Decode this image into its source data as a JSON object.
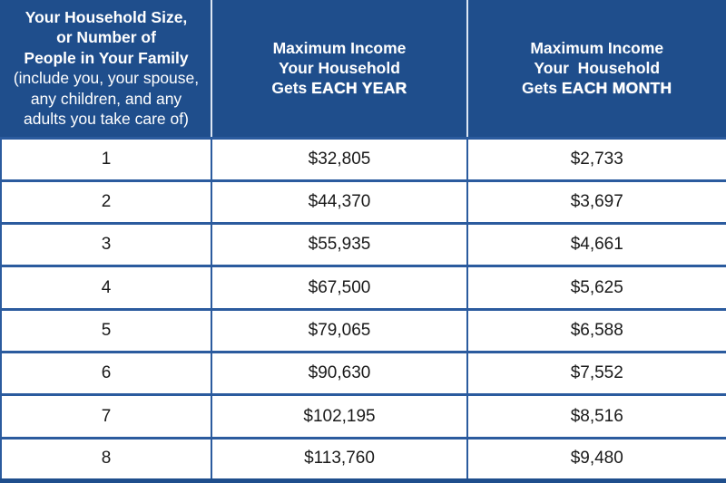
{
  "colors": {
    "header_bg": "#1F4E8C",
    "border_blue": "#2B5B9E",
    "outer_blue": "#1F4E8C",
    "header_sep": "#DDE7F4",
    "body_text": "#1A1A1A",
    "header_text": "#FFFFFF",
    "page_bg": "#FFFFFF"
  },
  "header": {
    "household": {
      "bold1": "Your Household Size,",
      "bold2": "or Number of",
      "bold3": "People in Your Family",
      "note1": "(include you, your spouse,",
      "note2": "any children, and any",
      "note3": "adults you take care of)"
    },
    "year": {
      "line1": "Maximum Income",
      "line2": "Your Household",
      "line3_prefix": "Gets ",
      "line3_emphasis": "EACH YEAR"
    },
    "month": {
      "line1": "Maximum Income",
      "line2": "Your  Household",
      "line3_prefix": "Gets ",
      "line3_emphasis": "EACH MONTH"
    }
  },
  "chart_data": {
    "type": "table",
    "columns": [
      "Your Household Size, or Number of People in Your Family (include you, your spouse, any children, and any adults you take care of)",
      "Maximum Income Your Household Gets EACH YEAR",
      "Maximum Income Your Household Gets EACH MONTH"
    ],
    "rows": [
      [
        "1",
        "$32,805",
        "$2,733"
      ],
      [
        "2",
        "$44,370",
        "$3,697"
      ],
      [
        "3",
        "$55,935",
        "$4,661"
      ],
      [
        "4",
        "$67,500",
        "$5,625"
      ],
      [
        "5",
        "$79,065",
        "$6,588"
      ],
      [
        "6",
        "$90,630",
        "$7,552"
      ],
      [
        "7",
        "$102,195",
        "$8,516"
      ],
      [
        "8",
        "$113,760",
        "$9,480"
      ]
    ]
  }
}
